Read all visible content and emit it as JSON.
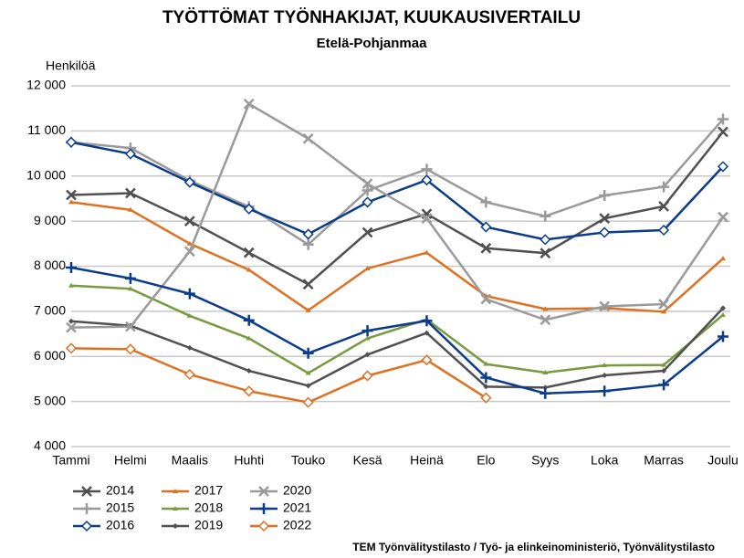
{
  "chart_data": {
    "type": "line",
    "title": "TYÖTTÖMAT TYÖNHAKIJAT, KUUKAUSIVERTAILU",
    "subtitle": "Etelä-Pohjanmaa",
    "y_label": "Henkilöä",
    "source": "TEM Työnvälitystilasto / Työ- ja elinkeinoministeriö, Työnvälitystilasto",
    "categories": [
      "Tammi",
      "Helmi",
      "Maalis",
      "Huhti",
      "Touko",
      "Kesä",
      "Heinä",
      "Elo",
      "Syys",
      "Loka",
      "Marras",
      "Joulu"
    ],
    "ylim": [
      4000,
      12000
    ],
    "yticks": [
      {
        "value": 4000,
        "label": "4 000"
      },
      {
        "value": 5000,
        "label": "5 000"
      },
      {
        "value": 6000,
        "label": "6 000"
      },
      {
        "value": 7000,
        "label": "7 000"
      },
      {
        "value": 8000,
        "label": "8 000"
      },
      {
        "value": 9000,
        "label": "9 000"
      },
      {
        "value": 10000,
        "label": "10 000"
      },
      {
        "value": 11000,
        "label": "11 000"
      },
      {
        "value": 12000,
        "label": "12 000"
      }
    ],
    "grid": true,
    "series": [
      {
        "name": "2014",
        "color": "#505050",
        "marker": "x",
        "values": [
          9580,
          9620,
          9000,
          8300,
          7600,
          8750,
          9160,
          8400,
          8290,
          9060,
          9330,
          10980
        ]
      },
      {
        "name": "2015",
        "color": "#9a9a9a",
        "marker": "plus",
        "values": [
          10750,
          10620,
          9900,
          9320,
          8480,
          9680,
          10150,
          9420,
          9110,
          9570,
          9760,
          11260
        ]
      },
      {
        "name": "2016",
        "color": "#0b3c8c",
        "marker": "diamond",
        "values": [
          10750,
          10490,
          9860,
          9270,
          8710,
          9420,
          9910,
          8870,
          8590,
          8750,
          8800,
          10210
        ]
      },
      {
        "name": "2017",
        "color": "#e07020",
        "marker": "triangle",
        "values": [
          9420,
          9250,
          8500,
          7920,
          7020,
          7950,
          8300,
          7340,
          7050,
          7070,
          6990,
          8170
        ]
      },
      {
        "name": "2018",
        "color": "#7a9a40",
        "marker": "triangle",
        "values": [
          7570,
          7500,
          6900,
          6400,
          5630,
          6400,
          6820,
          5830,
          5640,
          5800,
          5810,
          6920
        ]
      },
      {
        "name": "2019",
        "color": "#505050",
        "marker": "smalldiamond",
        "values": [
          6780,
          6680,
          6190,
          5680,
          5350,
          6040,
          6520,
          5330,
          5310,
          5580,
          5680,
          7070
        ]
      },
      {
        "name": "2020",
        "color": "#9a9a9a",
        "marker": "x",
        "values": [
          6640,
          6660,
          8330,
          11600,
          10830,
          9830,
          9060,
          7270,
          6810,
          7110,
          7160,
          9090
        ]
      },
      {
        "name": "2021",
        "color": "#0b3c8c",
        "marker": "plus",
        "values": [
          7970,
          7730,
          7390,
          6800,
          6070,
          6570,
          6790,
          5530,
          5180,
          5230,
          5370,
          6440
        ]
      },
      {
        "name": "2022",
        "color": "#e07020",
        "marker": "diamond",
        "values": [
          6180,
          6160,
          5600,
          5230,
          4980,
          5570,
          5920,
          5080,
          null,
          null,
          null,
          null
        ]
      }
    ]
  }
}
